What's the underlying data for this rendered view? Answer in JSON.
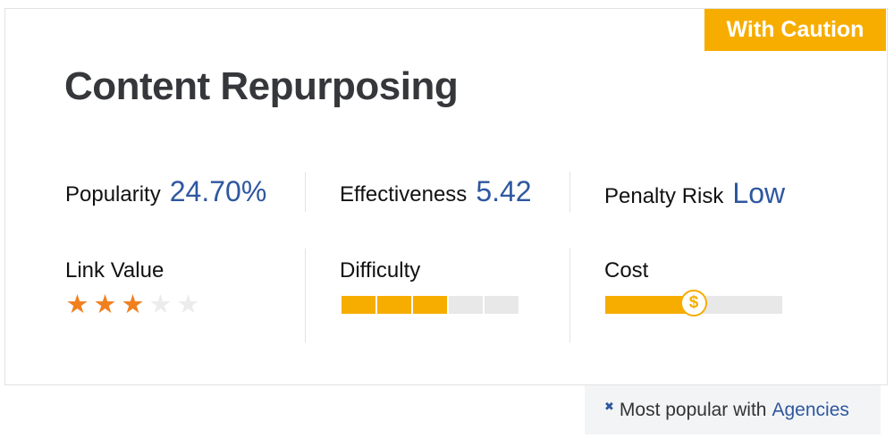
{
  "badge": "With Caution",
  "title": "Content Repurposing",
  "metrics": {
    "popularity": {
      "label": "Popularity",
      "value": "24.70%"
    },
    "effectiveness": {
      "label": "Effectiveness",
      "value": "5.42"
    },
    "penalty": {
      "label": "Penalty Risk",
      "value": "Low"
    }
  },
  "link_value": {
    "label": "Link Value",
    "rating": 3,
    "max": 5
  },
  "difficulty": {
    "label": "Difficulty",
    "level": 3,
    "max": 5
  },
  "cost": {
    "label": "Cost",
    "level_fraction": 0.5,
    "icon_glyph": "$",
    "icon": "dollar-icon"
  },
  "footer": {
    "icon": "badge-icon",
    "icon_glyph": "✖",
    "text": "Most popular with",
    "link": "Agencies"
  },
  "colors": {
    "accent": "#f6ad00",
    "star": "#f07f1e",
    "value_blue": "#2e57a0"
  }
}
